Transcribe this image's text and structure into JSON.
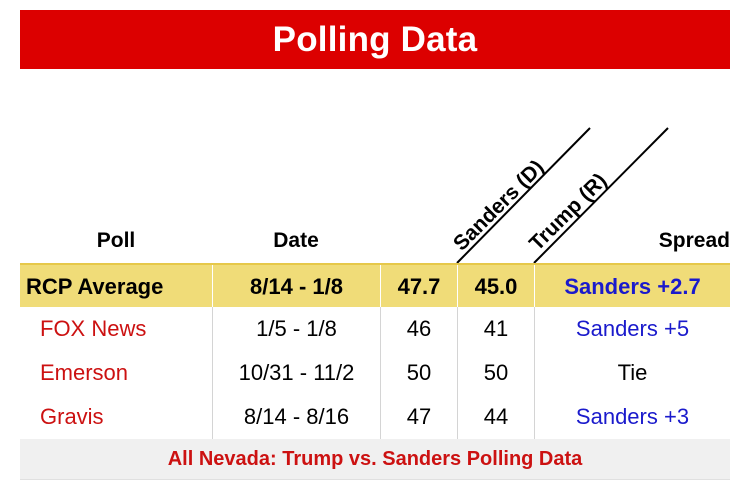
{
  "banner": {
    "title": "Polling Data"
  },
  "headers": {
    "poll": "Poll",
    "date": "Date",
    "sanders": "Sanders (D)",
    "trump": "Trump (R)",
    "spread": "Spread"
  },
  "average": {
    "poll": "RCP Average",
    "date": "8/14 - 1/8",
    "sanders": "47.7",
    "trump": "45.0",
    "spread": "Sanders +2.7"
  },
  "rows": [
    {
      "poll": "FOX News",
      "date": "1/5 - 1/8",
      "sanders": "46",
      "trump": "41",
      "spread": "Sanders +5"
    },
    {
      "poll": "Emerson",
      "date": "10/31 - 11/2",
      "sanders": "50",
      "trump": "50",
      "spread": "Tie"
    },
    {
      "poll": "Gravis",
      "date": "8/14 - 8/16",
      "sanders": "47",
      "trump": "44",
      "spread": "Sanders +3"
    }
  ],
  "footer": {
    "link": "All Nevada: Trump vs. Sanders Polling Data"
  },
  "colors": {
    "banner": "#dc0000",
    "average_bg": "#f0dc78",
    "poll_link": "#cc1111",
    "spread_link": "#1a1acc"
  }
}
